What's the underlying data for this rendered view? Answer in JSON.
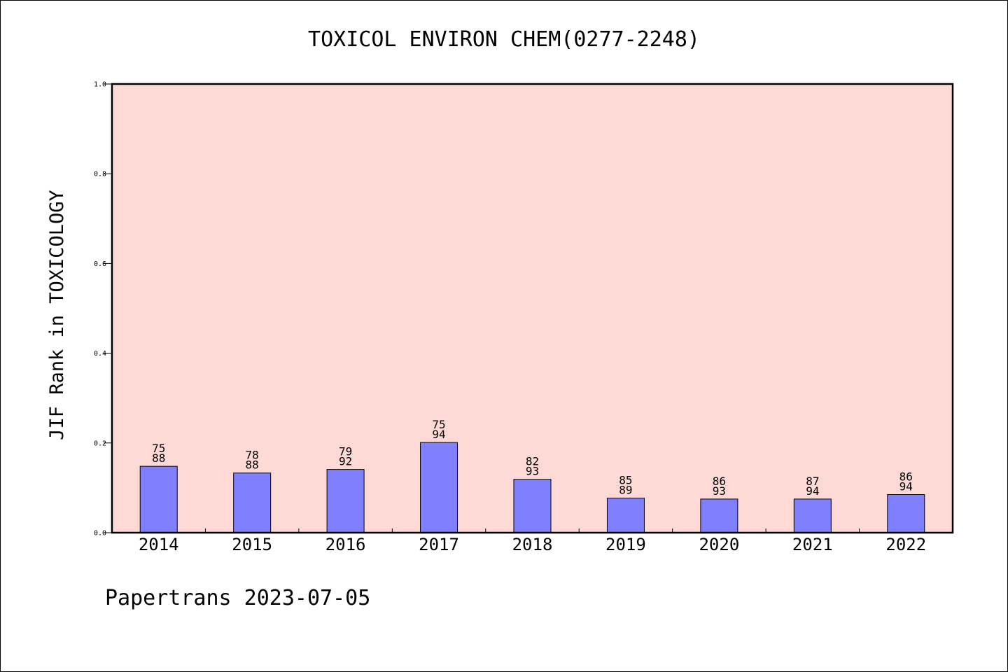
{
  "chart_data": {
    "type": "bar",
    "title": "TOXICOL ENVIRON CHEM(0277-2248)",
    "xlabel": "",
    "ylabel": "JIF Rank in TOXICOLOGY",
    "categories": [
      "2014",
      "2015",
      "2016",
      "2017",
      "2018",
      "2019",
      "2020",
      "2021",
      "2022"
    ],
    "values": [
      0.148,
      0.133,
      0.141,
      0.201,
      0.119,
      0.077,
      0.075,
      0.075,
      0.085
    ],
    "label_top": [
      "75",
      "78",
      "79",
      "75",
      "82",
      "85",
      "86",
      "87",
      "86"
    ],
    "label_bottom": [
      "88",
      "88",
      "92",
      "94",
      "93",
      "89",
      "93",
      "94",
      "94"
    ],
    "ylim": [
      0,
      1.0
    ],
    "yticks": [
      "0.0",
      "0.2",
      "0.4",
      "0.6",
      "0.8",
      "1.0"
    ],
    "grid": false,
    "colors": {
      "plot_background": "#fddad6",
      "bar": "#8080ff"
    }
  },
  "footer": "Papertrans 2023-07-05"
}
